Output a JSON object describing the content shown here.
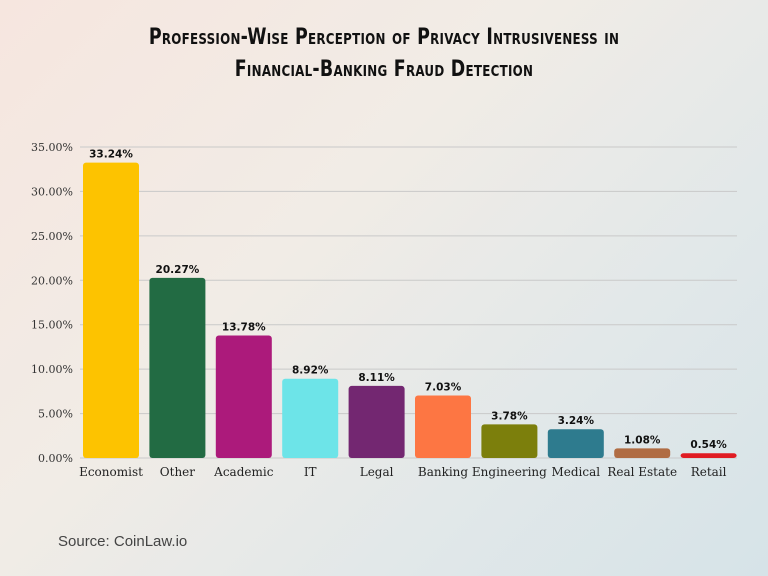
{
  "chart_data": {
    "type": "bar",
    "title": "Profession-Wise Perception of Privacy Intrusiveness in Financial-Banking Fraud Detection",
    "title_lines": [
      "Profession-Wise Perception of Privacy Intrusiveness in",
      "Financial-Banking Fraud Detection"
    ],
    "categories": [
      "Economist",
      "Other",
      "Academic",
      "IT",
      "Legal",
      "Banking",
      "Engineering",
      "Medical",
      "Real Estate",
      "Retail"
    ],
    "values": [
      33.24,
      20.27,
      13.78,
      8.92,
      8.11,
      7.03,
      3.78,
      3.24,
      1.08,
      0.54
    ],
    "value_labels": [
      "33.24%",
      "20.27%",
      "13.78%",
      "8.92%",
      "8.11%",
      "7.03%",
      "3.78%",
      "3.24%",
      "1.08%",
      "0.54%"
    ],
    "colors": [
      "#fdc300",
      "#226b43",
      "#ac1a7b",
      "#6de4e8",
      "#732771",
      "#fd7643",
      "#7c7f0c",
      "#2e7b8e",
      "#b06c43",
      "#e01b22"
    ],
    "yticks": [
      "0.00%",
      "5.00%",
      "10.00%",
      "15.00%",
      "20.00%",
      "25.00%",
      "30.00%",
      "35.00%"
    ],
    "ylim": [
      0,
      35
    ],
    "xlabel": "",
    "ylabel": "",
    "grid": true,
    "legend": "none"
  },
  "source": "Source: CoinLaw.io"
}
